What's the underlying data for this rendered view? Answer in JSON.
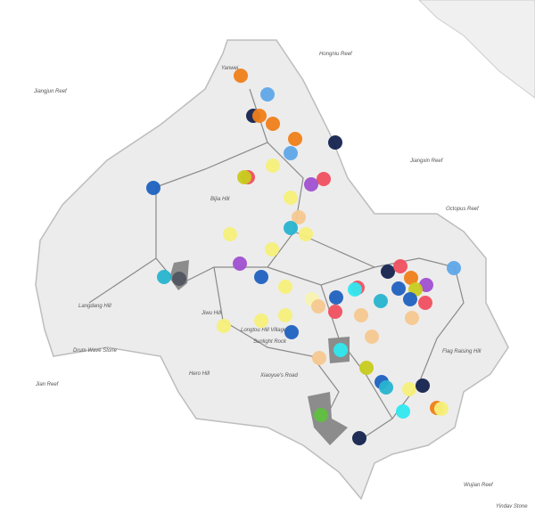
{
  "map": {
    "labels": [
      "Hongniu Reef",
      "Jiangjun Reef",
      "Yanwei",
      "Jiangxin Reef",
      "Octopus Reef",
      "Bijia Hill",
      "Langdang Hill",
      "Drum Wave Stone",
      "Jian Reef",
      "Jiwu Hill",
      "Longtou Hill Village",
      "Sunlight Rock",
      "Hero Hill",
      "Xiaoyue's Road",
      "Flag Raising Hill",
      "Wujian Reef",
      "Yindav Stone"
    ]
  }
}
